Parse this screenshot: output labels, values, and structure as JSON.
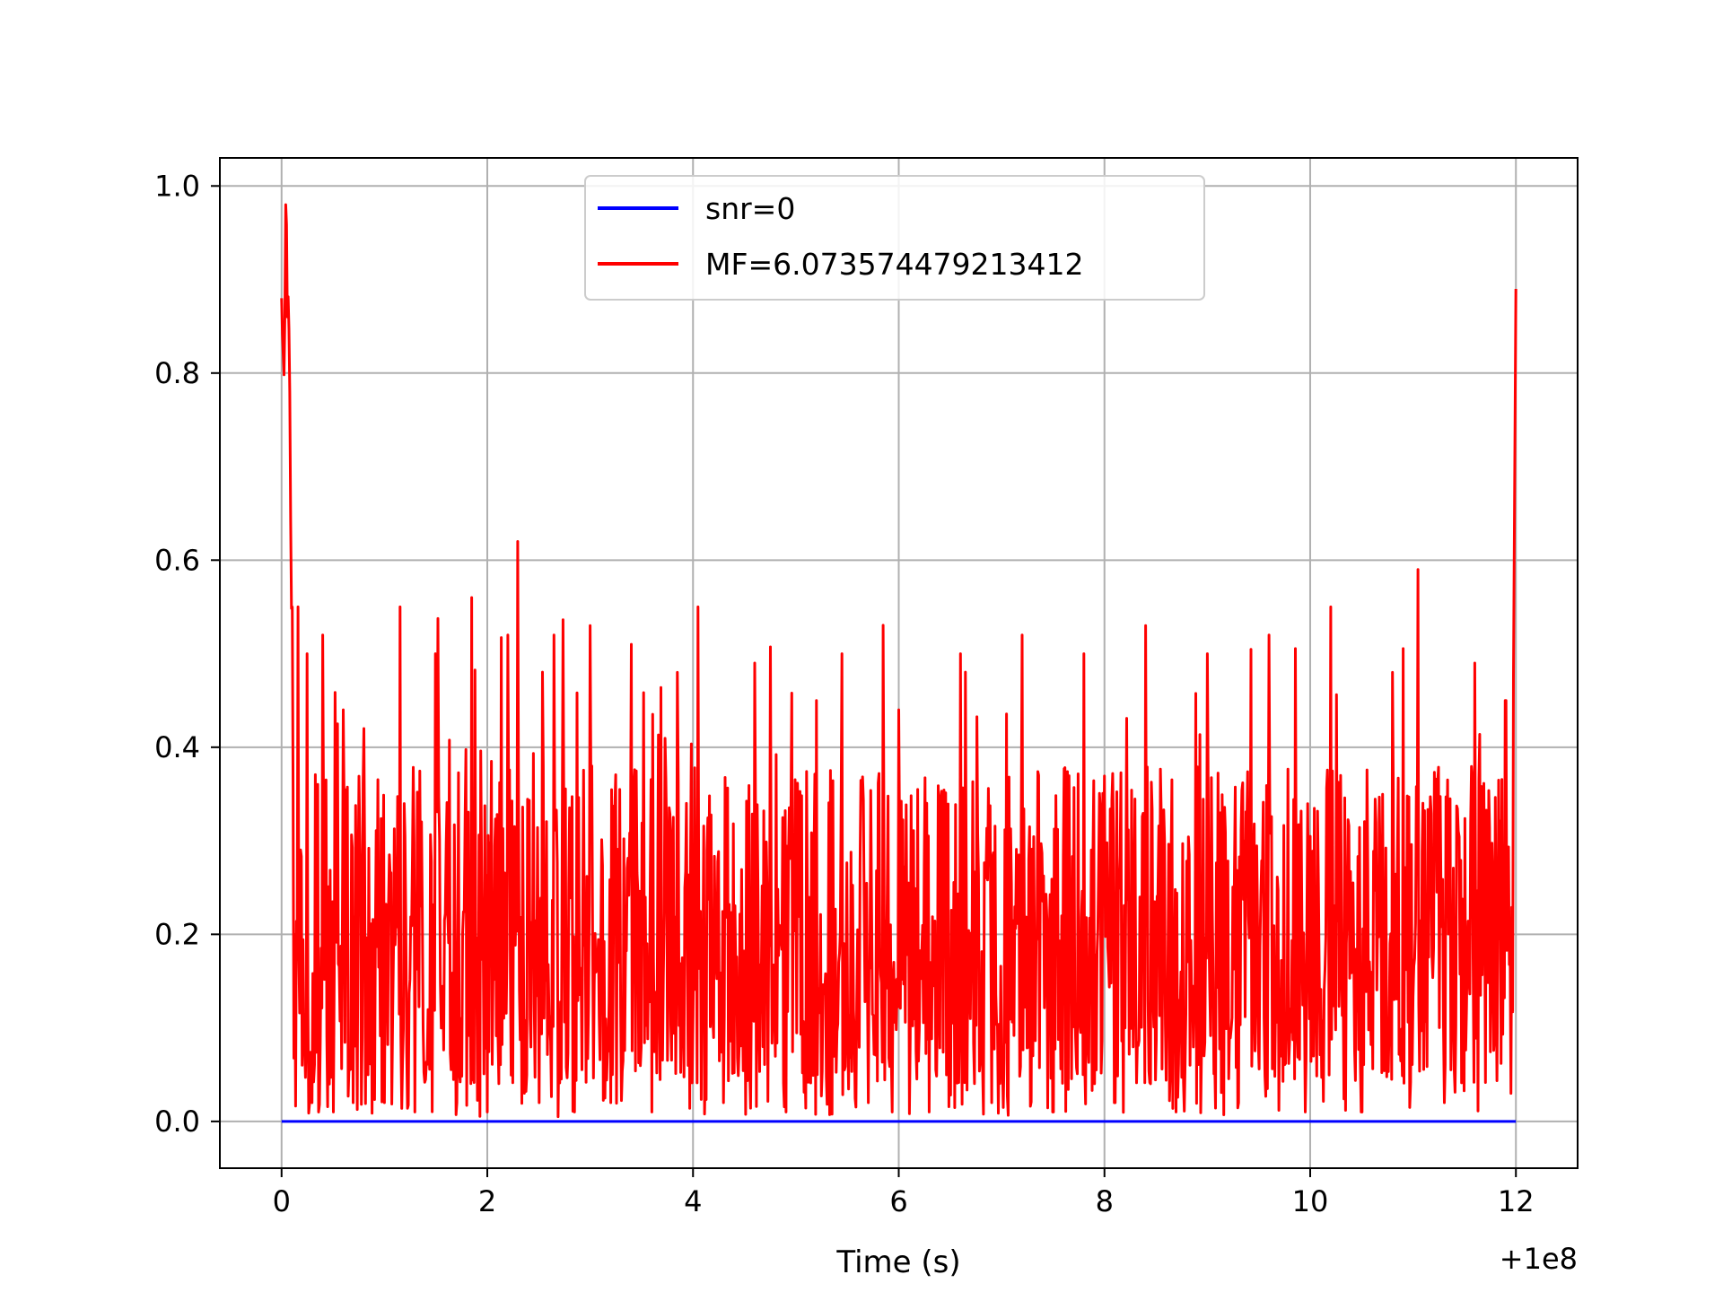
{
  "chart_data": {
    "type": "line",
    "title": "",
    "xlabel": "Time (s)",
    "ylabel": "",
    "x_offset_label": "+1e8",
    "xlim": [
      -0.6,
      12.6
    ],
    "ylim": [
      -0.05,
      1.03
    ],
    "xticks": [
      0,
      2,
      4,
      6,
      8,
      10,
      12
    ],
    "xtick_labels": [
      "0",
      "2",
      "4",
      "6",
      "8",
      "10",
      "12"
    ],
    "yticks": [
      0.0,
      0.2,
      0.4,
      0.6,
      0.8,
      1.0
    ],
    "ytick_labels": [
      "0.0",
      "0.2",
      "0.4",
      "0.6",
      "0.8",
      "1.0"
    ],
    "grid": true,
    "legend_position": "top-center",
    "series": [
      {
        "name": "snr=0",
        "color": "#0000ff",
        "x": [
          0,
          12
        ],
        "y": [
          0.0,
          0.0
        ]
      },
      {
        "name": "MF=6.073574479213412",
        "color": "#ff0000",
        "x": [
          0,
          0.02,
          0.04,
          0.06,
          0.08,
          0.1,
          0.13,
          0.16,
          0.2,
          0.25,
          0.3,
          0.4,
          0.5,
          0.6,
          0.7,
          0.8,
          1.0,
          1.15,
          1.3,
          1.5,
          1.7,
          1.85,
          2.0,
          2.2,
          2.3,
          2.5,
          2.65,
          2.85,
          3.0,
          3.2,
          3.4,
          3.6,
          3.85,
          4.05,
          4.3,
          4.6,
          4.9,
          5.2,
          5.45,
          5.7,
          6.0,
          6.3,
          6.6,
          6.9,
          7.2,
          7.5,
          7.8,
          8.1,
          8.4,
          8.7,
          9.0,
          9.3,
          9.6,
          9.95,
          10.2,
          10.5,
          10.8,
          11.05,
          11.3,
          11.6,
          11.9,
          11.95,
          12.0
        ],
        "y": [
          0.88,
          0.82,
          0.98,
          0.86,
          0.78,
          0.55,
          0.2,
          0.55,
          0.06,
          0.5,
          0.02,
          0.52,
          0.01,
          0.44,
          0.02,
          0.42,
          0.02,
          0.55,
          0.01,
          0.5,
          0.02,
          0.56,
          0.01,
          0.52,
          0.62,
          0.02,
          0.52,
          0.01,
          0.53,
          0.02,
          0.51,
          0.01,
          0.48,
          0.55,
          0.02,
          0.49,
          0.01,
          0.45,
          0.5,
          0.02,
          0.44,
          0.01,
          0.5,
          0.02,
          0.52,
          0.01,
          0.5,
          0.02,
          0.53,
          0.01,
          0.5,
          0.02,
          0.52,
          0.01,
          0.55,
          0.01,
          0.48,
          0.59,
          0.02,
          0.49,
          0.45,
          0.03,
          0.89
        ]
      }
    ]
  }
}
